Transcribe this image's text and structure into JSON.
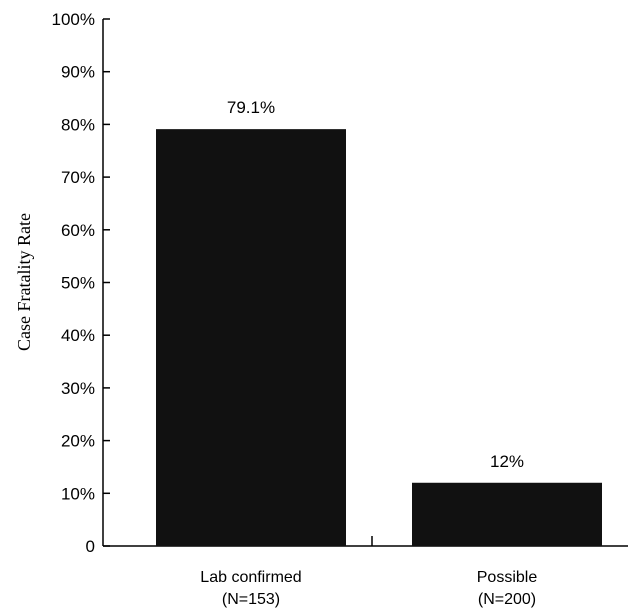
{
  "chart_data": {
    "type": "bar",
    "categories": [
      {
        "line1": "Lab confirmed",
        "line2": "(N=153)"
      },
      {
        "line1": "Possible",
        "line2": "(N=200)"
      }
    ],
    "values": [
      79.1,
      12
    ],
    "data_labels": [
      "79.1%",
      "12%"
    ],
    "ylabel": "Case Fratality Rate",
    "xlabel": "",
    "ylim": [
      0,
      100
    ],
    "yticks": [
      {
        "value": 0,
        "label": "0"
      },
      {
        "value": 10,
        "label": "10%"
      },
      {
        "value": 20,
        "label": "20%"
      },
      {
        "value": 30,
        "label": "30%"
      },
      {
        "value": 40,
        "label": "40%"
      },
      {
        "value": 50,
        "label": "50%"
      },
      {
        "value": 60,
        "label": "60%"
      },
      {
        "value": 70,
        "label": "70%"
      },
      {
        "value": 80,
        "label": "80%"
      },
      {
        "value": 90,
        "label": "90%"
      },
      {
        "value": 100,
        "label": "100%"
      }
    ],
    "grid": false,
    "legend": "none",
    "bar_color": "#111111"
  }
}
